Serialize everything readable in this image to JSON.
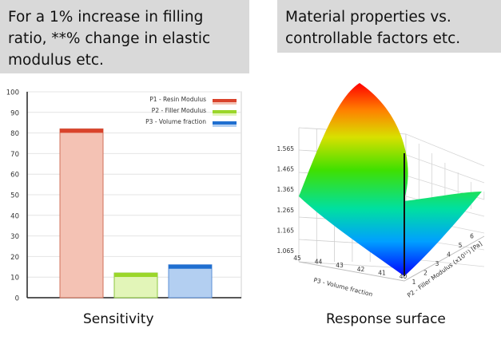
{
  "callouts": {
    "left": "For a 1% increase in filling ratio, **% change in elastic modulus etc.",
    "right": "Material properties vs. controllable factors etc."
  },
  "captions": {
    "left": "Sensitivity",
    "right": "Response surface"
  },
  "chart_data": [
    {
      "type": "bar",
      "categories": [
        "P1 - Resin Modulus",
        "P2 - Filler Modulus",
        "P3 - Volume fraction"
      ],
      "values": [
        82,
        12,
        16
      ],
      "ylim": [
        0,
        100
      ],
      "yticks": [
        "0",
        "10",
        "20",
        "30",
        "40",
        "50",
        "60",
        "70",
        "80",
        "90",
        "100"
      ],
      "legend": [
        "P1 - Resin Modulus",
        "P2 - Filler Modulus",
        "P3 - Volume fraction"
      ],
      "legend_placement": "top-right",
      "colors": {
        "P1": {
          "fill": "#f4c2b4",
          "top": "#d9432b",
          "stroke": "#d0705a"
        },
        "P2": {
          "fill": "#e2f5b8",
          "top": "#9bd62a",
          "stroke": "#8cc63f"
        },
        "P3": {
          "fill": "#b3cff1",
          "top": "#1f6fd0",
          "stroke": "#5b8fd6"
        }
      },
      "grid": true
    },
    {
      "type": "surface",
      "z_ticks": [
        "1.065",
        "1.165",
        "1.265",
        "1.365",
        "1.465",
        "1.565"
      ],
      "x_ticks": [
        "45",
        "44",
        "43",
        "42",
        "41",
        "40"
      ],
      "y_ticks": [
        "1",
        "2",
        "3",
        "4",
        "5",
        "6"
      ],
      "x_label": "P3 - Volume fraction",
      "y_label": "P2 - Filler Modulus (x10¹¹) [Pa]",
      "colormap": [
        "#0000ff",
        "#00aaff",
        "#00e090",
        "#60e000",
        "#e0e000",
        "#ff8000",
        "#ff0000"
      ]
    }
  ]
}
